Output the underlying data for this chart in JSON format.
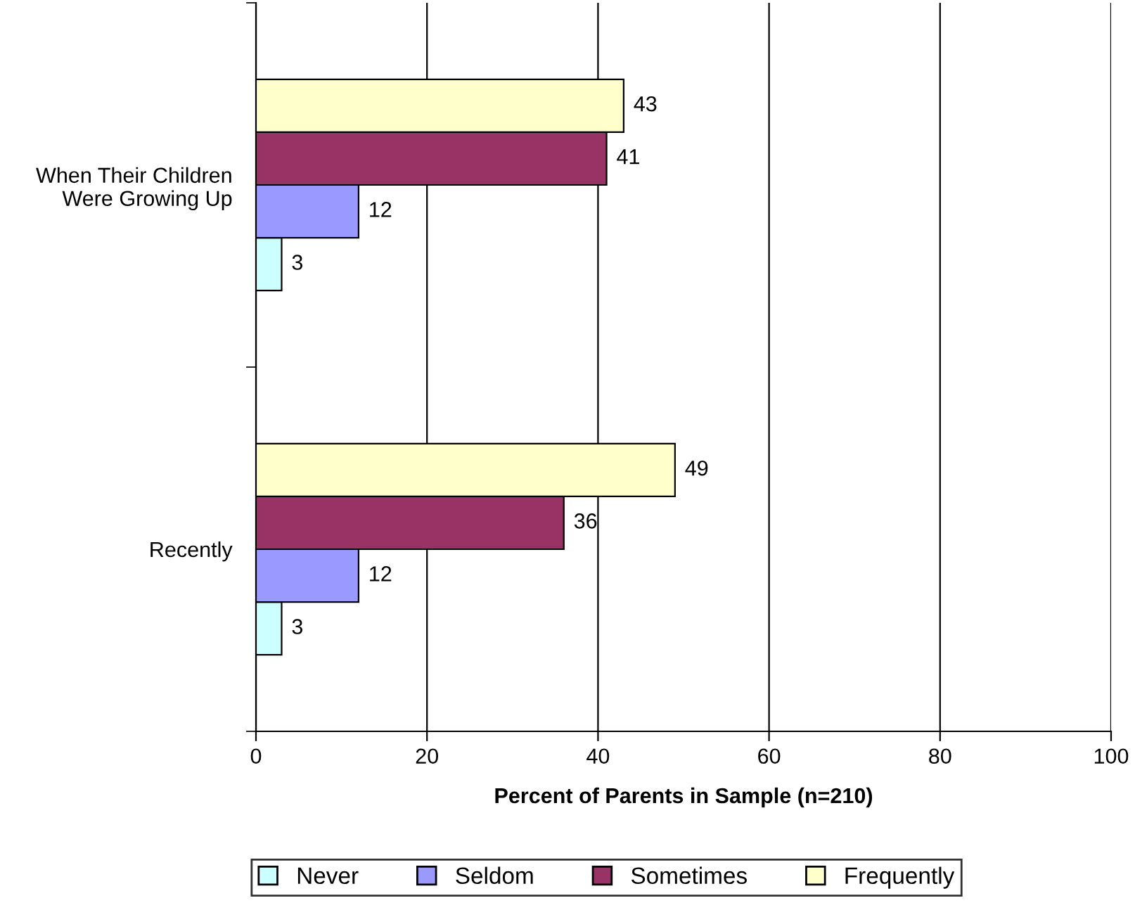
{
  "chart_data": {
    "type": "bar",
    "orientation": "horizontal",
    "xlabel": "Percent of Parents in Sample (n=210)",
    "categories": [
      "When Their Children\nWere Growing Up",
      "Recently"
    ],
    "series": [
      {
        "name": "Never",
        "color": "#ccffff",
        "values": [
          3,
          3
        ]
      },
      {
        "name": "Seldom",
        "color": "#9999ff",
        "values": [
          12,
          12
        ]
      },
      {
        "name": "Sometimes",
        "color": "#993366",
        "values": [
          41,
          36
        ]
      },
      {
        "name": "Frequently",
        "color": "#ffffcc",
        "values": [
          43,
          49
        ]
      }
    ],
    "xlim": [
      0,
      100
    ],
    "xticks": [
      0,
      20,
      40,
      60,
      80,
      100
    ],
    "grid": "x",
    "legend": "bottom",
    "data_labels": true
  }
}
